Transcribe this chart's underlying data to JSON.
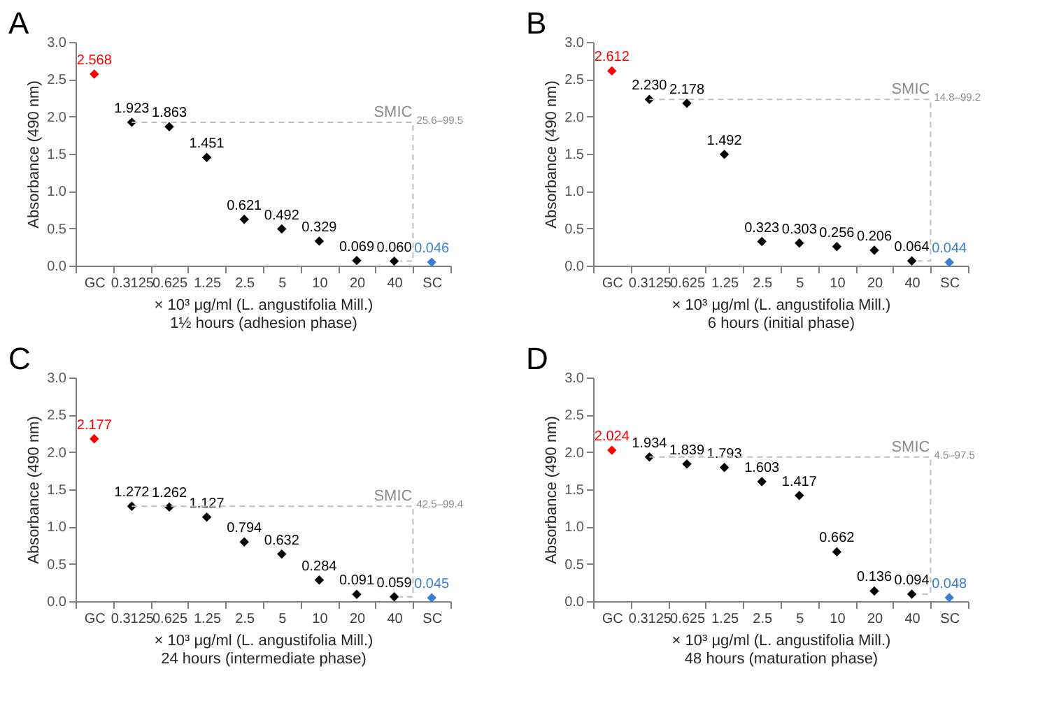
{
  "chart_data": [
    {
      "type": "scatter",
      "title": "A",
      "xlabel": "× 10³ μg/ml (L. angustifolia Mill.)",
      "ylabel": "Absorbance (490 nm)",
      "categories": [
        "GC",
        "0.3125",
        "0.625",
        "1.25",
        "2.5",
        "5",
        "10",
        "20",
        "40",
        "SC"
      ],
      "values": [
        2.568,
        1.923,
        1.863,
        1.451,
        0.621,
        0.492,
        0.329,
        0.069,
        0.06,
        0.046
      ],
      "value_labels": [
        "2.568",
        "1.923",
        "1.863",
        "1.451",
        "0.621",
        "0.492",
        "0.329",
        "0.069",
        "0.060",
        "0.046"
      ],
      "colors": [
        "#ff0000",
        "#000000",
        "#000000",
        "#000000",
        "#000000",
        "#000000",
        "#000000",
        "#000000",
        "#000000",
        "#3a7fd0"
      ],
      "ylim": [
        0,
        3
      ],
      "yticks": [
        {
          "value": 0,
          "label": "0.0"
        },
        0.5,
        {
          "value": 1,
          "label": "1.0"
        },
        1.5,
        {
          "value": 2,
          "label": "2.0"
        },
        2.5,
        {
          "value": 3,
          "label": "3.0"
        }
      ],
      "marker": "diamond",
      "annotations": [
        "SMIC$_{25.6–99.5}$",
        "1½ hours (adhesion phase)"
      ]
    },
    {
      "type": "scatter",
      "title": "B",
      "xlabel": "× 10³ μg/ml (L. angustifolia Mill.)",
      "ylabel": "Absorbance (490 nm)",
      "categories": [
        "GC",
        "0.3125",
        "0.625",
        "1.25",
        "2.5",
        "5",
        "10",
        "20",
        "40",
        "SC"
      ],
      "values": [
        2.612,
        2.23,
        2.178,
        1.492,
        0.323,
        0.303,
        0.256,
        0.206,
        0.064,
        0.044
      ],
      "value_labels": [
        "2.612",
        "2.230",
        "2.178",
        "1.492",
        "0.323",
        "0.303",
        "0.256",
        "0.206",
        "0.064",
        "0.044"
      ],
      "colors": [
        "#ff0000",
        "#000000",
        "#000000",
        "#000000",
        "#000000",
        "#000000",
        "#000000",
        "#000000",
        "#000000",
        "#3a7fd0"
      ],
      "ylim": [
        0,
        3
      ],
      "yticks": [
        {
          "value": 0,
          "label": "0.0"
        },
        0.5,
        {
          "value": 1,
          "label": "1.0"
        },
        1.5,
        {
          "value": 2,
          "label": "2.0"
        },
        2.5,
        {
          "value": 3,
          "label": "3.0"
        }
      ],
      "marker": "diamond",
      "annotations": [
        "SMIC$_{14.8–99.2}$",
        "6 hours (initial phase)"
      ]
    },
    {
      "type": "scatter",
      "title": "C",
      "xlabel": "× 10³ μg/ml (L. angustifolia Mill.)",
      "ylabel": "Absorbance (490 nm)",
      "categories": [
        "GC",
        "0.3125",
        "0.625",
        "1.25",
        "2.5",
        "5",
        "10",
        "20",
        "40",
        "SC"
      ],
      "values": [
        2.177,
        1.272,
        1.262,
        1.127,
        0.794,
        0.632,
        0.284,
        0.091,
        0.059,
        0.045
      ],
      "value_labels": [
        "2.177",
        "1.272",
        "1.262",
        "1.127",
        "0.794",
        "0.632",
        "0.284",
        "0.091",
        "0.059",
        "0.045"
      ],
      "colors": [
        "#ff0000",
        "#000000",
        "#000000",
        "#000000",
        "#000000",
        "#000000",
        "#000000",
        "#000000",
        "#000000",
        "#3a7fd0"
      ],
      "ylim": [
        0,
        3
      ],
      "yticks": [
        {
          "value": 0,
          "label": "0.0"
        },
        0.5,
        {
          "value": 1,
          "label": "1.0"
        },
        1.5,
        {
          "value": 2,
          "label": "2.0"
        },
        2.5,
        {
          "value": 3,
          "label": "3.0"
        }
      ],
      "marker": "diamond",
      "annotations": [
        "SMIC$_{42.5–99.4}$",
        "24 hours (intermediate phase)"
      ]
    },
    {
      "type": "scatter",
      "title": "D",
      "xlabel": "× 10³ μg/ml (L. angustifolia Mill.)",
      "ylabel": "Absorbance (490 nm)",
      "categories": [
        "GC",
        "0.3125",
        "0.625",
        "1.25",
        "2.5",
        "5",
        "10",
        "20",
        "40",
        "SC"
      ],
      "values": [
        2.024,
        1.934,
        1.839,
        1.793,
        1.603,
        1.417,
        0.662,
        0.136,
        0.094,
        0.048
      ],
      "value_labels": [
        "2.024",
        "1.934",
        "1.839",
        "1.793",
        "1.603",
        "1.417",
        "0.662",
        "0.136",
        "0.094",
        "0.048"
      ],
      "colors": [
        "#ff0000",
        "#000000",
        "#000000",
        "#000000",
        "#000000",
        "#000000",
        "#000000",
        "#000000",
        "#000000",
        "#3a7fd0"
      ],
      "ylim": [
        0,
        3
      ],
      "yticks": [
        {
          "value": 0,
          "label": "0.0"
        },
        0.5,
        {
          "value": 1,
          "label": "1.0"
        },
        1.5,
        {
          "value": 2,
          "label": "2.0"
        },
        2.5,
        {
          "value": 3,
          "label": "3.0"
        }
      ],
      "marker": "diamond",
      "annotations": [
        "SMIC$_{4.5–97.5}$",
        "48 hours (maturation phase)"
      ]
    }
  ]
}
